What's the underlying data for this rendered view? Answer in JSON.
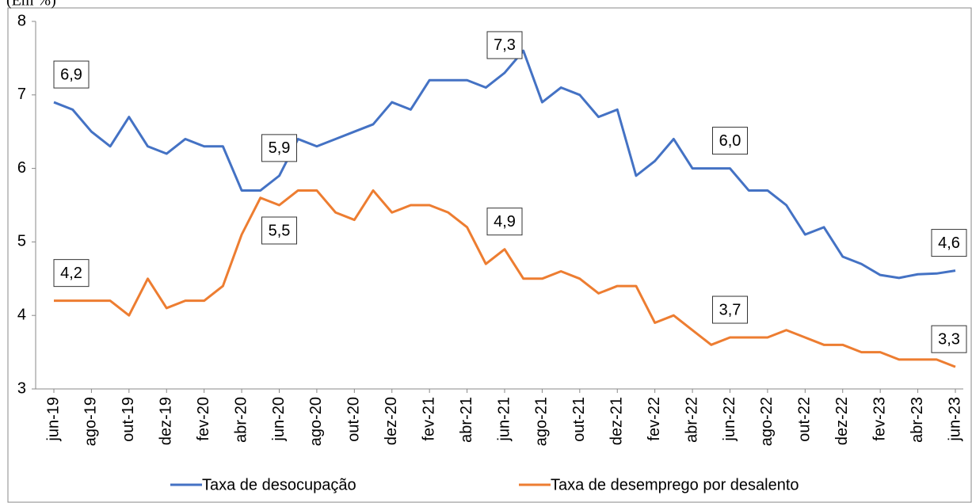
{
  "chart_data": {
    "type": "line",
    "y_label": "(Em %)",
    "categories": [
      "jun-19",
      null,
      "ago-19",
      null,
      "out-19",
      null,
      "dez-19",
      null,
      "fev-20",
      null,
      "abr-20",
      null,
      "jun-20",
      null,
      "ago-20",
      null,
      "out-20",
      null,
      "dez-20",
      null,
      "fev-21",
      null,
      "abr-21",
      null,
      "jun-21",
      null,
      "ago-21",
      null,
      "out-21",
      null,
      "dez-21",
      null,
      "fev-22",
      null,
      "abr-22",
      null,
      "jun-22",
      null,
      "ago-22",
      null,
      "out-22",
      null,
      "dez-22",
      null,
      "fev-23",
      null,
      "abr-23",
      null,
      "jun-23"
    ],
    "series": [
      {
        "name": "Taxa de desocupação",
        "color": "#4472c4",
        "values": [
          6.9,
          6.8,
          6.5,
          6.3,
          6.7,
          6.3,
          6.2,
          6.4,
          6.3,
          6.3,
          5.7,
          5.7,
          5.9,
          6.4,
          6.3,
          6.4,
          6.5,
          6.6,
          6.9,
          6.8,
          7.2,
          7.2,
          7.2,
          7.1,
          7.3,
          7.6,
          6.9,
          7.1,
          7.0,
          6.7,
          6.8,
          5.9,
          6.1,
          6.4,
          6.0,
          6.0,
          6.0,
          5.7,
          5.7,
          5.5,
          5.1,
          5.2,
          4.8,
          4.7,
          4.55,
          4.51,
          4.56,
          4.57,
          4.61
        ],
        "value_labels": [
          "6,9",
          null,
          null,
          null,
          null,
          null,
          null,
          null,
          null,
          null,
          null,
          null,
          "5,9",
          null,
          null,
          null,
          null,
          null,
          null,
          null,
          null,
          null,
          null,
          null,
          "7,3",
          null,
          null,
          null,
          null,
          null,
          null,
          null,
          null,
          null,
          null,
          null,
          "6,0",
          null,
          null,
          null,
          null,
          null,
          null,
          null,
          null,
          null,
          null,
          null,
          "4,6"
        ]
      },
      {
        "name": "Taxa de desemprego por desalento",
        "color": "#ed7d31",
        "values": [
          4.2,
          4.2,
          4.2,
          4.2,
          4.0,
          4.5,
          4.1,
          4.2,
          4.2,
          4.4,
          5.1,
          5.6,
          5.5,
          5.7,
          5.7,
          5.4,
          5.3,
          5.7,
          5.4,
          5.5,
          5.5,
          5.4,
          5.2,
          4.7,
          4.9,
          4.5,
          4.5,
          4.6,
          4.5,
          4.3,
          4.4,
          4.4,
          3.9,
          4.0,
          3.8,
          3.6,
          3.7,
          3.7,
          3.7,
          3.8,
          3.7,
          3.6,
          3.6,
          3.5,
          3.5,
          3.4,
          3.4,
          3.4,
          3.3
        ],
        "value_labels": [
          "4,2",
          null,
          null,
          null,
          null,
          null,
          null,
          null,
          null,
          null,
          null,
          null,
          "5,5",
          null,
          null,
          null,
          null,
          null,
          null,
          null,
          null,
          null,
          null,
          null,
          "4,9",
          null,
          null,
          null,
          null,
          null,
          null,
          null,
          null,
          null,
          null,
          null,
          "3,7",
          null,
          null,
          null,
          null,
          null,
          null,
          null,
          null,
          null,
          null,
          null,
          "3,3"
        ]
      }
    ],
    "ylim": [
      3,
      8
    ],
    "yticks": [
      3,
      4,
      5,
      6,
      7,
      8
    ],
    "grid": false,
    "legend": "bottom"
  }
}
